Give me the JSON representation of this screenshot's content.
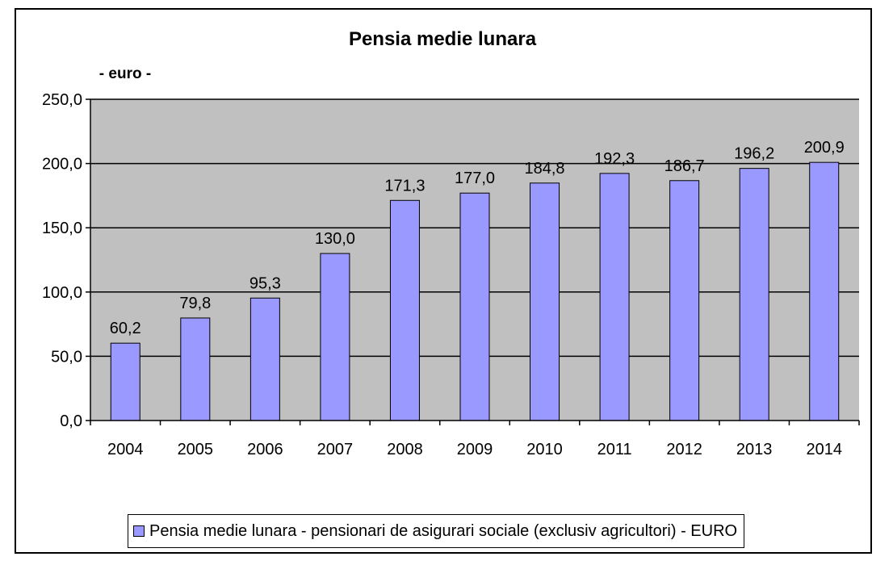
{
  "chart_data": {
    "type": "bar",
    "title": "Pensia medie lunara",
    "unit_label": "- euro -",
    "categories": [
      "2004",
      "2005",
      "2006",
      "2007",
      "2008",
      "2009",
      "2010",
      "2011",
      "2012",
      "2013",
      "2014"
    ],
    "series": [
      {
        "name": "Pensia medie lunara - pensionari de asigurari sociale (exclusiv agricultori) - EURO",
        "values": [
          60.2,
          79.8,
          95.3,
          130.0,
          171.3,
          177.0,
          184.8,
          192.3,
          186.7,
          196.2,
          200.9
        ],
        "value_labels": [
          "60,2",
          "79,8",
          "95,3",
          "130,0",
          "171,3",
          "177,0",
          "184,8",
          "192,3",
          "186,7",
          "196,2",
          "200,9"
        ],
        "color": "#9999ff"
      }
    ],
    "ylim": [
      0,
      250
    ],
    "yticks": [
      0,
      50,
      100,
      150,
      200,
      250
    ],
    "ytick_labels": [
      "0,0",
      "50,0",
      "100,0",
      "150,0",
      "200,0",
      "250,0"
    ],
    "grid": true,
    "plot_background": "#c0c0c0",
    "legend_position": "bottom"
  }
}
